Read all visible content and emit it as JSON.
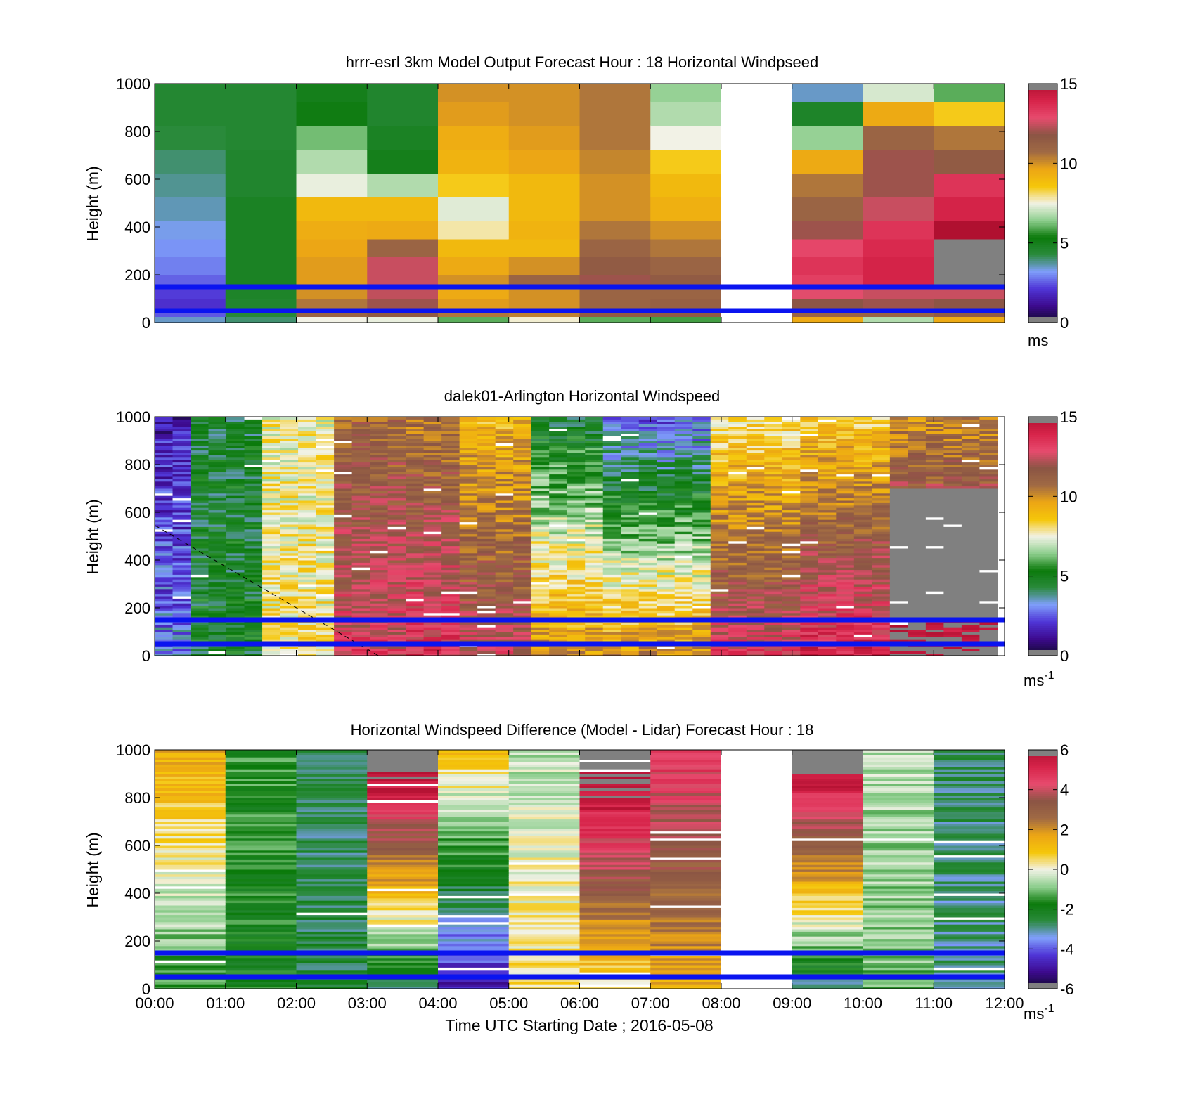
{
  "chart_data": [
    {
      "type": "heatmap",
      "title": "hrrr-esrl 3km Model Output   Forecast Hour : 18 Horizontal Windpseed",
      "ylabel": "Height (m)",
      "xlabel": "",
      "ylim": [
        0,
        1000
      ],
      "yticks": [
        "0",
        "200",
        "400",
        "600",
        "800",
        "1000"
      ],
      "colorbar": {
        "vmin": 0,
        "vmax": 15,
        "ticks": [
          "0",
          "5",
          "10",
          "15"
        ],
        "unit_main": "ms",
        "unit_sup": ""
      },
      "heights_m": [
        25,
        50,
        100,
        150,
        200,
        275,
        350,
        425,
        525,
        625,
        725,
        825,
        925,
        1000
      ],
      "columns": [
        {
          "hour": 0,
          "values": [
            3.5,
            2.5,
            2.0,
            2.2,
            2.6,
            2.9,
            3.1,
            3.3,
            3.6,
            3.8,
            4.0,
            4.3,
            4.5,
            4.5
          ]
        },
        {
          "hour": 1,
          "values": [
            4.0,
            4.4,
            4.6,
            4.7,
            4.8,
            4.8,
            4.8,
            4.8,
            4.8,
            4.6,
            4.6,
            4.5,
            4.5,
            4.5
          ]
        },
        {
          "hour": 2,
          "values": [
            7.5,
            11.0,
            10.5,
            10.0,
            9.8,
            9.8,
            9.6,
            9.4,
            9.0,
            7.4,
            6.8,
            6.2,
            5.2,
            5.0
          ]
        },
        {
          "hour": 3,
          "values": [
            7.4,
            11.5,
            12.0,
            12.4,
            12.5,
            12.5,
            11.0,
            9.5,
            9.0,
            6.8,
            5.0,
            4.8,
            4.6,
            4.6
          ]
        },
        {
          "hour": 4,
          "values": [
            6.0,
            10.5,
            9.8,
            9.5,
            10.0,
            9.5,
            9.0,
            7.8,
            7.3,
            8.5,
            9.2,
            9.4,
            9.8,
            10.0
          ]
        },
        {
          "hour": 5,
          "values": [
            7.6,
            10.3,
            10.0,
            10.0,
            11.0,
            10.0,
            9.0,
            9.2,
            9.0,
            9.0,
            9.6,
            9.8,
            10.0,
            10.0
          ]
        },
        {
          "hour": 6,
          "values": [
            6.0,
            11.5,
            11.0,
            11.0,
            12.0,
            11.5,
            11.0,
            10.5,
            10.0,
            10.0,
            10.2,
            10.5,
            10.5,
            10.5
          ]
        },
        {
          "hour": 7,
          "values": [
            5.8,
            11.5,
            11.2,
            11.0,
            11.5,
            11.0,
            10.5,
            10.0,
            9.3,
            9.0,
            8.5,
            7.5,
            6.8,
            6.5
          ]
        },
        {
          "hour": 8,
          "values": [
            null,
            null,
            null,
            null,
            null,
            null,
            null,
            null,
            null,
            null,
            null,
            null,
            null,
            null
          ]
        },
        {
          "hour": 9,
          "values": [
            9.5,
            11.0,
            11.8,
            12.8,
            13.2,
            13.5,
            13.0,
            12.0,
            11.0,
            10.5,
            9.5,
            6.5,
            4.7,
            3.5
          ]
        },
        {
          "hour": 10,
          "values": [
            6.8,
            11.0,
            12.0,
            12.5,
            14.0,
            14.0,
            13.8,
            13.5,
            12.5,
            12.0,
            12.0,
            11.0,
            9.5,
            7.2
          ]
        },
        {
          "hour": 11,
          "values": [
            9.5,
            11.5,
            11.8,
            12.5,
            15.5,
            15.5,
            15.5,
            15.0,
            14.0,
            13.5,
            11.5,
            10.5,
            8.5,
            6.0
          ]
        }
      ],
      "reference_heights_m": [
        50,
        150
      ]
    },
    {
      "type": "heatmap",
      "title": "dalek01-Arlington  Horizontal Windspeed",
      "ylabel": "Height (m)",
      "xlabel": "",
      "ylim": [
        0,
        1000
      ],
      "yticks": [
        "0",
        "200",
        "400",
        "600",
        "800",
        "1000"
      ],
      "colorbar": {
        "vmin": 0,
        "vmax": 15,
        "ticks": [
          "0",
          "5",
          "10",
          "15"
        ],
        "unit_main": "ms",
        "unit_sup": "-1"
      },
      "profile_interval_min": 15,
      "profile_count": 47,
      "height_resolution_m": 10,
      "description_of_profiles": [
        {
          "time_from_h": 0.0,
          "time_to_h": 0.6,
          "low_ms": 3.0,
          "high_ms": 1.5
        },
        {
          "time_from_h": 0.6,
          "time_to_h": 1.6,
          "low_ms": 4.8,
          "high_ms": 4.6
        },
        {
          "time_from_h": 1.6,
          "time_to_h": 2.6,
          "low_ms": 8.0,
          "high_ms": 7.6
        },
        {
          "time_from_h": 2.6,
          "time_to_h": 3.5,
          "low_ms": 13.0,
          "high_ms": 11.0
        },
        {
          "time_from_h": 3.5,
          "time_to_h": 4.4,
          "low_ms": 13.5,
          "high_ms": 10.5
        },
        {
          "time_from_h": 4.4,
          "time_to_h": 5.3,
          "low_ms": 12.5,
          "high_ms": 9.0
        },
        {
          "time_from_h": 5.3,
          "time_to_h": 6.3,
          "low_ms": 10.0,
          "high_ms": 4.5
        },
        {
          "time_from_h": 6.3,
          "time_to_h": 7.8,
          "low_ms": 10.0,
          "high_ms": 2.5
        },
        {
          "time_from_h": 7.8,
          "time_to_h": 9.2,
          "low_ms": 13.0,
          "high_ms": 8.0
        },
        {
          "time_from_h": 9.2,
          "time_to_h": 10.4,
          "low_ms": 14.0,
          "high_ms": 8.5
        },
        {
          "time_from_h": 10.4,
          "time_to_h": 11.9,
          "low_ms": 15.5,
          "high_ms": 10.0
        }
      ],
      "reference_heights_m": [
        50,
        150
      ]
    },
    {
      "type": "heatmap",
      "title": "Horizontal Windspeed Difference (Model - Lidar) Forecast Hour : 18",
      "ylabel": "Height (m)",
      "xlabel": "Time UTC  Starting Date ; 2016-05-08",
      "ylim": [
        0,
        1000
      ],
      "yticks": [
        "0",
        "200",
        "400",
        "600",
        "800",
        "1000"
      ],
      "xticks": [
        "00:00",
        "01:00",
        "02:00",
        "03:00",
        "04:00",
        "05:00",
        "06:00",
        "07:00",
        "08:00",
        "09:00",
        "10:00",
        "11:00",
        "12:00"
      ],
      "colorbar": {
        "vmin": -6,
        "vmax": 6,
        "ticks": [
          "-6",
          "-4",
          "-2",
          "0",
          "2",
          "4",
          "6"
        ],
        "unit_main": "ms",
        "unit_sup": "-1"
      },
      "columns": [
        {
          "hour": 0,
          "low_ms": -1.5,
          "high_ms": 1.6
        },
        {
          "hour": 1,
          "low_ms": -1.8,
          "high_ms": -1.5
        },
        {
          "hour": 2,
          "low_ms": -2.4,
          "high_ms": -2.8
        },
        {
          "hour": 3,
          "low_ms": -2.6,
          "high_ms": 7.0
        },
        {
          "hour": 4,
          "low_ms": -4.8,
          "high_ms": 1.0
        },
        {
          "hour": 5,
          "low_ms": 0.5,
          "high_ms": -0.5
        },
        {
          "hour": 6,
          "low_ms": 0.4,
          "high_ms": 7.0
        },
        {
          "hour": 7,
          "low_ms": 1.5,
          "high_ms": 4.8
        },
        {
          "hour": 8,
          "low_ms": null,
          "high_ms": null
        },
        {
          "hour": 9,
          "low_ms": -2.8,
          "high_ms": 7.0
        },
        {
          "hour": 10,
          "low_ms": -1.0,
          "high_ms": -0.5
        },
        {
          "hour": 11,
          "low_ms": -3.0,
          "high_ms": -2.7
        }
      ],
      "reference_heights_m": [
        50,
        150
      ]
    }
  ],
  "colormap": [
    "#0f0a2a",
    "#3d0a8f",
    "#4f35d6",
    "#7f9ffa",
    "#2a8a3c",
    "#0b7a0b",
    "#8fcf8f",
    "#f2f2e6",
    "#f5c70a",
    "#eca515",
    "#a06a44",
    "#8b5544",
    "#e74b6e",
    "#d7244a",
    "#b01030",
    "#808080"
  ],
  "reference_line_color": "#0a14f0",
  "missing_color": "#808080"
}
